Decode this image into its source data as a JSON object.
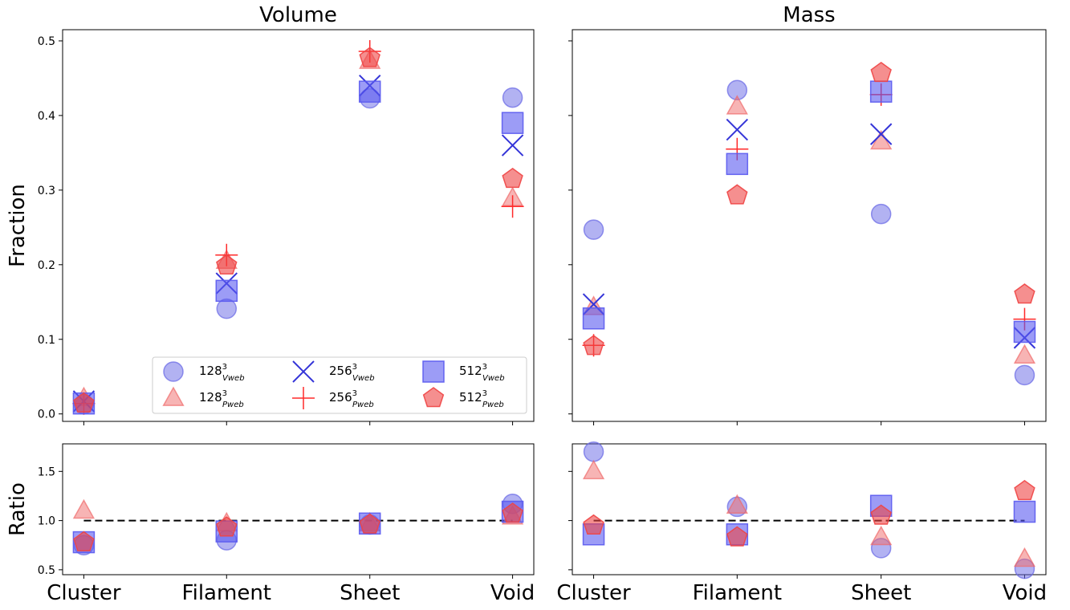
{
  "chart_data": [
    {
      "type": "scatter",
      "panel": "volume-fraction",
      "title": "Volume",
      "ylabel": "Fraction",
      "categories": [
        "Cluster",
        "Filament",
        "Sheet",
        "Void"
      ],
      "ylim": [
        -0.01,
        0.515
      ],
      "yticks": [
        0.0,
        0.1,
        0.2,
        0.3,
        0.4,
        0.5
      ],
      "series": [
        {
          "key": "v128",
          "values": [
            0.013,
            0.141,
            0.423,
            0.424
          ]
        },
        {
          "key": "p128",
          "values": [
            0.021,
            0.205,
            0.473,
            0.289
          ]
        },
        {
          "key": "v256",
          "values": [
            0.017,
            0.175,
            0.44,
            0.36
          ]
        },
        {
          "key": "p256",
          "values": [
            0.014,
            0.213,
            0.486,
            0.278
          ]
        },
        {
          "key": "v512",
          "values": [
            0.014,
            0.165,
            0.432,
            0.39
          ]
        },
        {
          "key": "p512",
          "values": [
            0.014,
            0.199,
            0.477,
            0.315
          ]
        }
      ]
    },
    {
      "type": "scatter",
      "panel": "mass-fraction",
      "title": "Mass",
      "categories": [
        "Cluster",
        "Filament",
        "Sheet",
        "Void"
      ],
      "ylim": [
        -0.01,
        0.515
      ],
      "yticks": [
        0.0,
        0.1,
        0.2,
        0.3,
        0.4,
        0.5
      ],
      "series": [
        {
          "key": "v128",
          "values": [
            0.247,
            0.434,
            0.268,
            0.052
          ]
        },
        {
          "key": "p128",
          "values": [
            0.143,
            0.412,
            0.365,
            0.078
          ]
        },
        {
          "key": "v256",
          "values": [
            0.147,
            0.381,
            0.375,
            0.102
          ]
        },
        {
          "key": "p256",
          "values": [
            0.092,
            0.355,
            0.428,
            0.127
          ]
        },
        {
          "key": "v512",
          "values": [
            0.128,
            0.335,
            0.432,
            0.11
          ]
        },
        {
          "key": "p512",
          "values": [
            0.091,
            0.293,
            0.457,
            0.16
          ]
        }
      ]
    },
    {
      "type": "scatter",
      "panel": "volume-ratio",
      "ylabel": "Ratio",
      "categories": [
        "Cluster",
        "Filament",
        "Sheet",
        "Void"
      ],
      "ylim": [
        0.45,
        1.78
      ],
      "yticks": [
        0.5,
        1.0,
        1.5
      ],
      "reference_line": 1.0,
      "series": [
        {
          "key": "v128",
          "values": [
            0.75,
            0.8,
            0.96,
            1.17
          ]
        },
        {
          "key": "p128",
          "values": [
            1.1,
            0.97,
            0.97,
            1.04
          ]
        },
        {
          "key": "v512",
          "values": [
            0.78,
            0.89,
            0.97,
            1.09
          ]
        },
        {
          "key": "p512",
          "values": [
            0.78,
            0.93,
            0.96,
            1.07
          ]
        }
      ]
    },
    {
      "type": "scatter",
      "panel": "mass-ratio",
      "categories": [
        "Cluster",
        "Filament",
        "Sheet",
        "Void"
      ],
      "ylim": [
        0.45,
        1.78
      ],
      "yticks": [
        0.5,
        1.0,
        1.5
      ],
      "reference_line": 1.0,
      "series": [
        {
          "key": "v128",
          "values": [
            1.7,
            1.14,
            0.72,
            0.51
          ]
        },
        {
          "key": "p128",
          "values": [
            1.5,
            1.15,
            0.83,
            0.61
          ]
        },
        {
          "key": "v512",
          "values": [
            0.86,
            0.86,
            1.15,
            1.09
          ]
        },
        {
          "key": "p512",
          "values": [
            0.95,
            0.83,
            1.05,
            1.3
          ]
        }
      ]
    }
  ],
  "legend": {
    "placement": "lower-right of volume panel",
    "entries": [
      {
        "key": "v128",
        "base": "128",
        "sup": "3",
        "sub": "Vweb",
        "marker": "circle",
        "color": "#6666e6",
        "alpha": 0.5
      },
      {
        "key": "p128",
        "base": "128",
        "sup": "3",
        "sub": "Pweb",
        "marker": "triangle",
        "color": "#f06a6a",
        "alpha": 0.5
      },
      {
        "key": "v256",
        "base": "256",
        "sup": "3",
        "sub": "Vweb",
        "marker": "x",
        "color": "#3535d8",
        "alpha": 1.0
      },
      {
        "key": "p256",
        "base": "256",
        "sup": "3",
        "sub": "Pweb",
        "marker": "plus",
        "color": "#ff2a2a",
        "alpha": 1.0
      },
      {
        "key": "v512",
        "base": "512",
        "sup": "3",
        "sub": "Vweb",
        "marker": "square",
        "color": "#5a5af0",
        "alpha": 0.6
      },
      {
        "key": "p512",
        "base": "512",
        "sup": "3",
        "sub": "Pweb",
        "marker": "pentagon",
        "color": "#ef4444",
        "alpha": 0.6
      }
    ]
  }
}
